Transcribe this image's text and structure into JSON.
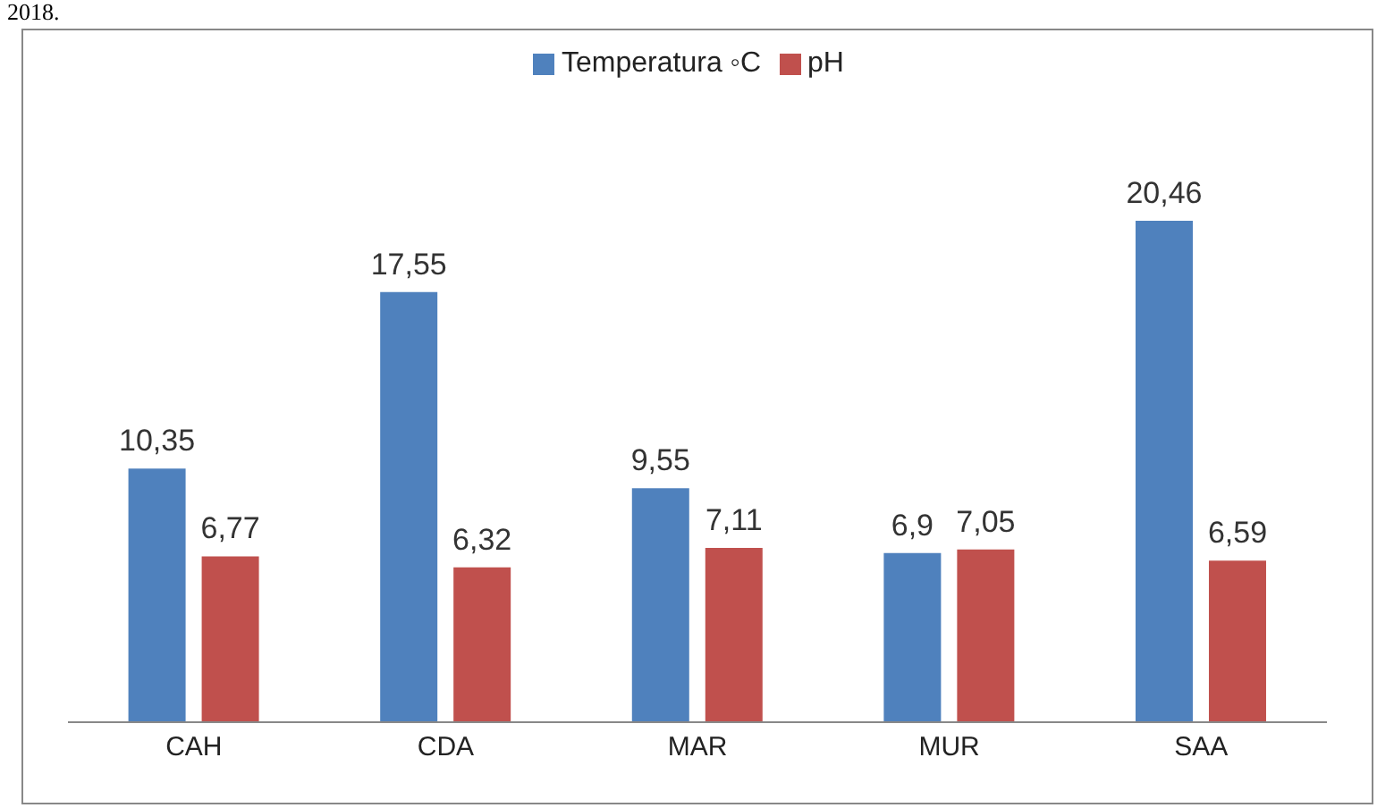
{
  "chart_data": {
    "type": "bar",
    "categories": [
      "CAH",
      "CDA",
      "MAR",
      "MUR",
      "SAA"
    ],
    "series": [
      {
        "name": "Temperatura ◦C",
        "color": "#4f81bd",
        "values": [
          10.35,
          17.55,
          9.55,
          6.9,
          20.46
        ],
        "value_labels": [
          "10,35",
          "17,55",
          "9,55",
          "6,9",
          "20,46"
        ]
      },
      {
        "name": "pH",
        "color": "#c0504d",
        "values": [
          6.77,
          6.32,
          7.11,
          7.05,
          6.59
        ],
        "value_labels": [
          "6,77",
          "6,32",
          "7,11",
          "7,05",
          "6,59"
        ]
      }
    ],
    "legend": "top",
    "tick_labels": "x",
    "annotations": [
      "2018."
    ]
  }
}
